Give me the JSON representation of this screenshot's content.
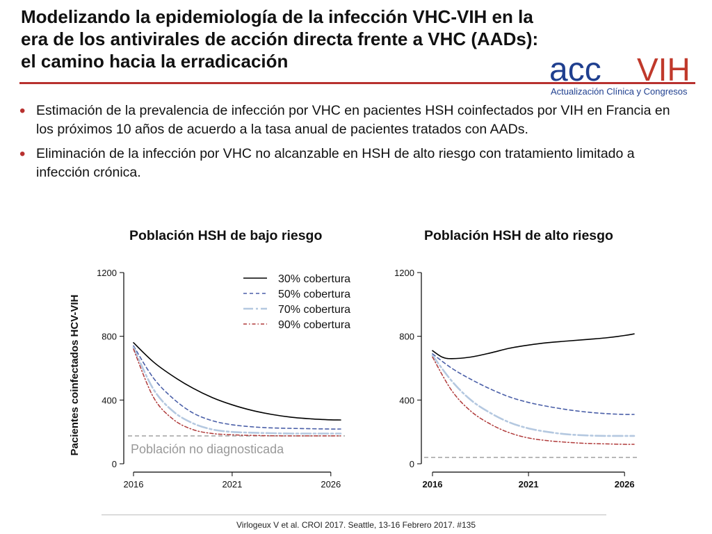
{
  "title_lines": [
    "Modelizando la epidemiología de la infección VHC-VIH en la",
    "era de los antivirales de acción directa frente a VHC (AADs):",
    "el camino hacia la erradicación"
  ],
  "logo": {
    "brand_acc": "acc",
    "brand_vih": "VIH",
    "tagline": "Actualización Clínica y Congresos"
  },
  "bullets": [
    "Estimación de la prevalencia de infección por VHC en pacientes HSH coinfectados por VIH en Francia en los próximos 10 años de acuerdo a la tasa anual de pacientes tratados con AADs.",
    "Eliminación de la infección por VHC no alcanzable en HSH de alto riesgo con tratamiento limitado a infección crónica."
  ],
  "colors": {
    "accent_red": "#b8312f",
    "logo_blue": "#1f3f8f",
    "logo_red": "#c0392b",
    "series_30": "#000000",
    "series_50": "#4a5fa8",
    "series_70": "#b4c8e0",
    "series_90": "#b03a3a",
    "undiagnosed": "#999999"
  },
  "chart_data": [
    {
      "type": "line",
      "title": "Población HSH de bajo riesgo",
      "ylabel": "Pacientes  coinfectados HCV-VIH",
      "xlabel": "",
      "xlim": [
        2016,
        2026.5
      ],
      "ylim": [
        0,
        1200
      ],
      "xticks": [
        "2016",
        "2021",
        "2026"
      ],
      "yticks": [
        "0",
        "400",
        "800",
        "1200"
      ],
      "legend": "top-right",
      "series": [
        {
          "name": "30% cobertura",
          "style": "solid",
          "x": [
            2016,
            2017,
            2018,
            2019,
            2020,
            2021,
            2022,
            2023,
            2024,
            2025,
            2026,
            2026.5
          ],
          "y": [
            760,
            640,
            550,
            475,
            415,
            370,
            335,
            310,
            292,
            282,
            276,
            275
          ]
        },
        {
          "name": "50% cobertura",
          "style": "dash",
          "x": [
            2016,
            2017,
            2018,
            2019,
            2020,
            2021,
            2022,
            2023,
            2024,
            2025,
            2026,
            2026.5
          ],
          "y": [
            740,
            540,
            410,
            320,
            270,
            245,
            232,
            225,
            222,
            220,
            218,
            218
          ]
        },
        {
          "name": "70% cobertura",
          "style": "dashdot",
          "x": [
            2016,
            2017,
            2018,
            2019,
            2020,
            2021,
            2022,
            2023,
            2024,
            2025,
            2026,
            2026.5
          ],
          "y": [
            730,
            470,
            330,
            255,
            215,
            200,
            195,
            192,
            190,
            190,
            190,
            190
          ]
        },
        {
          "name": "90% cobertura",
          "style": "dot",
          "x": [
            2016,
            2017,
            2018,
            2019,
            2020,
            2021,
            2022,
            2023,
            2024,
            2025,
            2026,
            2026.5
          ],
          "y": [
            720,
            420,
            280,
            215,
            190,
            182,
            178,
            176,
            175,
            175,
            175,
            175
          ]
        }
      ],
      "reference": {
        "y": 175,
        "label": "Población no diagnosticada"
      }
    },
    {
      "type": "line",
      "title": "Población HSH de alto riesgo",
      "ylabel": "",
      "xlabel": "",
      "xlim": [
        2016,
        2026.5
      ],
      "ylim": [
        0,
        1200
      ],
      "xticks": [
        "2016",
        "2021",
        "2026"
      ],
      "yticks": [
        "0",
        "400",
        "800",
        "1200"
      ],
      "series": [
        {
          "name": "30% cobertura",
          "style": "solid",
          "x": [
            2016,
            2016.5,
            2017,
            2018,
            2019,
            2020,
            2021,
            2022,
            2023,
            2024,
            2025,
            2026,
            2026.5
          ],
          "y": [
            710,
            670,
            660,
            670,
            695,
            725,
            745,
            760,
            770,
            780,
            790,
            805,
            815
          ]
        },
        {
          "name": "50% cobertura",
          "style": "dash",
          "x": [
            2016,
            2017,
            2018,
            2019,
            2020,
            2021,
            2022,
            2023,
            2024,
            2025,
            2026,
            2026.5
          ],
          "y": [
            690,
            600,
            530,
            470,
            420,
            385,
            360,
            340,
            325,
            315,
            310,
            310
          ]
        },
        {
          "name": "70% cobertura",
          "style": "dashdot",
          "x": [
            2016,
            2017,
            2018,
            2019,
            2020,
            2021,
            2022,
            2023,
            2024,
            2025,
            2026,
            2026.5
          ],
          "y": [
            680,
            520,
            400,
            320,
            260,
            222,
            200,
            185,
            178,
            175,
            175,
            175
          ]
        },
        {
          "name": "90% cobertura",
          "style": "dot",
          "x": [
            2016,
            2017,
            2018,
            2019,
            2020,
            2021,
            2022,
            2023,
            2024,
            2025,
            2026,
            2026.5
          ],
          "y": [
            670,
            460,
            330,
            250,
            195,
            162,
            145,
            135,
            128,
            125,
            122,
            122
          ]
        }
      ],
      "reference": {
        "y": 40,
        "label": ""
      }
    }
  ],
  "footer": "Virlogeux V et al. CROI 2017. Seattle, 13-16 Febrero 2017. #135"
}
